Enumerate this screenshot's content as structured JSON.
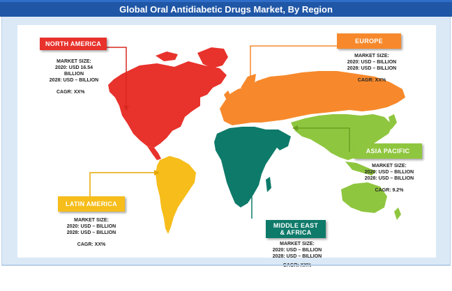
{
  "title": "Global Oral Antidiabetic Drugs Market, By Region",
  "regions": {
    "north_america": {
      "name": "NORTH AMERICA",
      "market_size_label": "MARKET SIZE:",
      "line_2020": "2020: USD 16.54",
      "line_2020b": "BILLION",
      "line_2028": "2028: USD – BILLION",
      "cagr": "CAGR: XX%",
      "color": "#e8322c"
    },
    "europe": {
      "name": "EUROPE",
      "market_size_label": "MARKET SIZE:",
      "line_2020": "2020: USD – BILLION",
      "line_2028": "2028: USD – BILLION",
      "cagr": "CAGR: XX%",
      "color": "#f7892c"
    },
    "asia_pacific": {
      "name": "ASIA PACIFIC",
      "market_size_label": "MARKET SIZE:",
      "line_2020": "2020: USD – BILLION",
      "line_2028": "2028: USD – BILLION",
      "cagr": "CAGR: 9.2%",
      "color": "#8fc63f"
    },
    "latin_america": {
      "name": "LATIN AMERICA",
      "market_size_label": "MARKET SIZE:",
      "line_2020": "2020: USD – BILLION",
      "line_2028": "2028: USD – BILLION",
      "cagr": "CAGR: XX%",
      "color": "#f6bd1b"
    },
    "middle_east_africa": {
      "name_line1": "MIDDLE EAST",
      "name_line2": "& AFRICA",
      "market_size_label": "MARKET SIZE:",
      "line_2020": "2020: USD – BILLION",
      "line_2028": "2028: USD – BILLION",
      "cagr": "CAGR: XX%",
      "color": "#0e7a6a"
    }
  },
  "colors": {
    "title_bar": "#1f56a6",
    "panel_background": "#dbe9f7"
  }
}
